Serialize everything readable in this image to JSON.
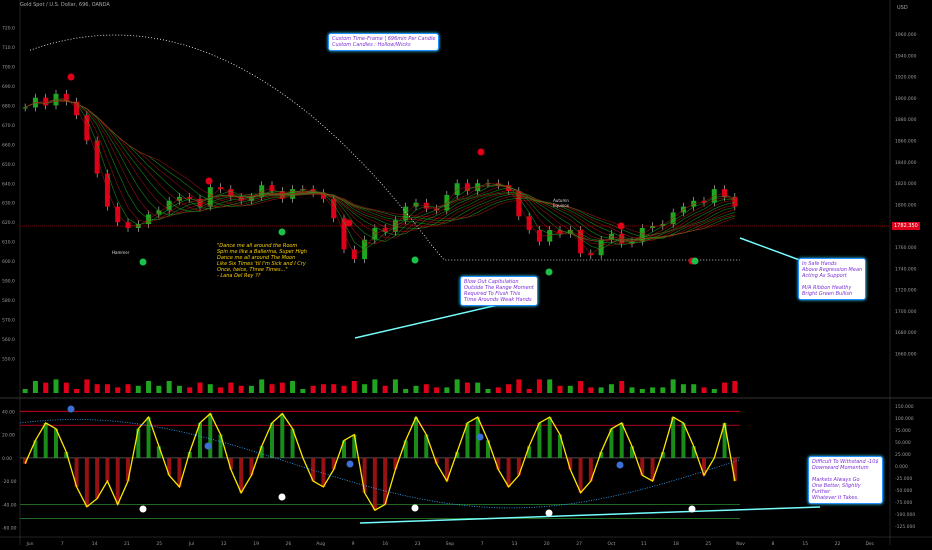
{
  "header": {
    "symbol_line": "Gold Spot / U.S. Dollar, 696, OANDA",
    "symbol_line2": "Gold Spot / U.S. Dollar, 696, OANDA"
  },
  "currency_label": "USD",
  "current_price_tag": "1782.350",
  "notes": {
    "timeframe": "Custom Time-Frame | 696min Per Candle\nCustom Candles : Hollow/Wicks",
    "dance": "\"Dance me all around the Room\nSpin me like a Ballerina, Super High\nDance me all around The Moon\nLike Six Times 'til I'm Sick and I Cry\nOnce, twice, Three Times...\"\n- Lana Del Rey ??",
    "capitulation": "Blow Out Capitulation\nOutside The Range Moment\nRequired To Flush This\nTime Arounds Weak Hands",
    "safe_hands": "In Safe Hands\nAbove Regression Mean\nActing As Support\n\nM/A Ribbon Healthy\nBright Green Bullish",
    "difficult": "Difficult To Withstand -10$\nDownward Momentum\n\nMarkets Always Go\nOne Better, Slightly\nFurther\nWhatever It Takes.",
    "hammer": "Hammer",
    "autumn": "Autumn\nEquinox"
  },
  "chart_data": [
    {
      "type": "candlestick",
      "title": "",
      "series": [
        {
          "name": "",
          "values": [
            679,
            684,
            680,
            686,
            682,
            675,
            662,
            645,
            628,
            620,
            617,
            619,
            624,
            626,
            631,
            633,
            632,
            628,
            638,
            637,
            633,
            631,
            633,
            639,
            636,
            632,
            637,
            637,
            635,
            632,
            622,
            606,
            601,
            611,
            617,
            615,
            621,
            628,
            630,
            627,
            626,
            634,
            640,
            636,
            640,
            640,
            639,
            636,
            623,
            616,
            610,
            616,
            614,
            616,
            604,
            603,
            611,
            614,
            609,
            610,
            617,
            618,
            619,
            625,
            628,
            631,
            630,
            637,
            633,
            628
          ]
        }
      ],
      "x_tick_labels": [
        "Jun",
        "7",
        "14",
        "21",
        "25",
        "Jul",
        "12",
        "19",
        "26",
        "Aug",
        "9",
        "16",
        "23",
        "Sep",
        "7",
        "13",
        "20",
        "27",
        "Oct",
        "11",
        "18",
        "25",
        "Nov",
        "8",
        "15",
        "22",
        "Dec"
      ],
      "left_axis_ticks": [
        "720.0",
        "710.0",
        "700.0",
        "690.0",
        "680.0",
        "670.0",
        "660.0",
        "650.0",
        "640.0",
        "630.0",
        "620.0",
        "610.0",
        "600.0",
        "590.0",
        "580.0",
        "570.0",
        "560.0",
        "550.0"
      ],
      "right_axis_ticks": [
        "1960.000",
        "1940.000",
        "1920.000",
        "1900.000",
        "1880.000",
        "1860.000",
        "1840.000",
        "1820.000",
        "1800.000",
        "1780.000",
        "1760.000",
        "1740.000",
        "1720.000",
        "1700.000",
        "1680.000",
        "1660.000"
      ],
      "ylim": [
        545,
        725
      ],
      "grid": false,
      "overlays": [
        "moving-average ribbon",
        "regression mean (dotted white)"
      ]
    },
    {
      "type": "line",
      "title": "",
      "series": [
        {
          "name": "",
          "values": [
            -5,
            15,
            30,
            25,
            5,
            -25,
            -42,
            -35,
            -20,
            -40,
            -20,
            25,
            35,
            10,
            -15,
            -25,
            5,
            30,
            38,
            20,
            -10,
            -30,
            -15,
            10,
            30,
            38,
            25,
            0,
            -20,
            -25,
            -10,
            15,
            20,
            -30,
            -45,
            -40,
            -10,
            15,
            35,
            20,
            -5,
            -20,
            5,
            30,
            35,
            15,
            -10,
            -25,
            -15,
            10,
            30,
            35,
            20,
            -10,
            -30,
            -20,
            5,
            25,
            30,
            10,
            -15,
            -20,
            5,
            35,
            30,
            10,
            -15,
            0,
            30,
            -20
          ]
        }
      ],
      "left_axis_ticks": [
        "40.00",
        "20.00",
        "0.00",
        "-20.00",
        "-40.00",
        "-60.00"
      ],
      "right_axis_ticks": [
        "150.000",
        "100.000",
        "75.000",
        "50.000",
        "25.000",
        "0.000",
        "-25.000",
        "-50.000",
        "-75.000",
        "-100.000",
        "-125.000"
      ],
      "ylim": [
        -62,
        48
      ],
      "reference_lines": [
        40,
        28,
        0,
        -40,
        -52
      ]
    }
  ]
}
